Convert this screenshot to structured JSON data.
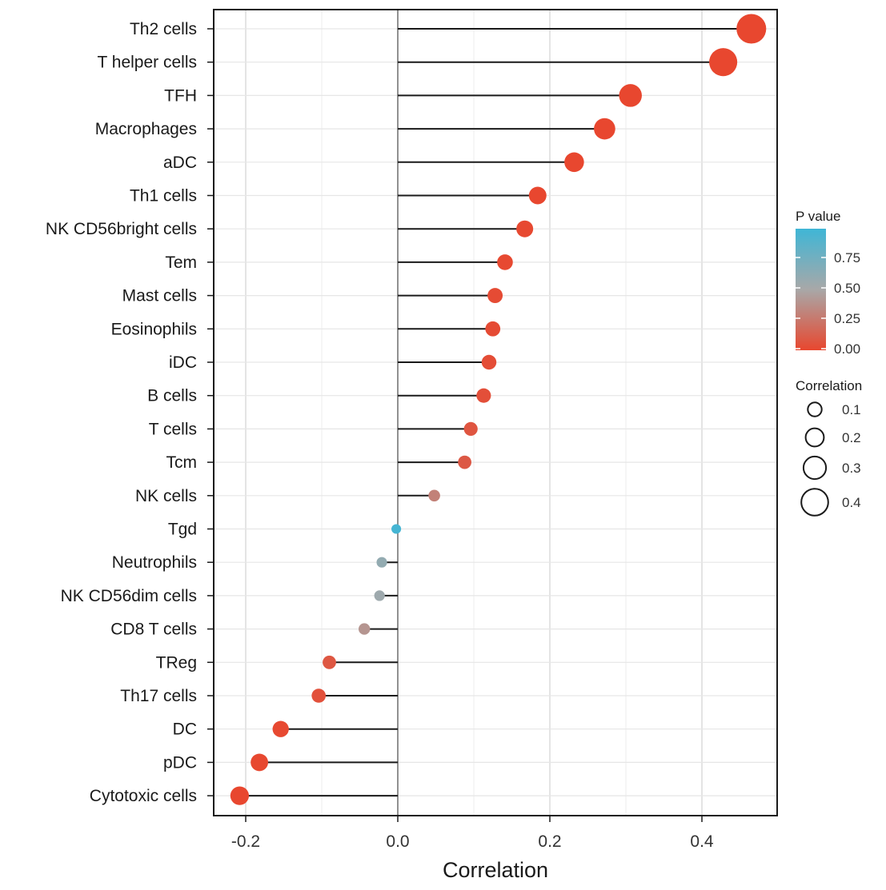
{
  "chart_data": {
    "type": "scatter",
    "subtype": "lollipop",
    "title": "",
    "xlabel": "Correlation",
    "ylabel": "",
    "xlim": [
      -0.24,
      0.5
    ],
    "xticks": [
      -0.2,
      0.0,
      0.2,
      0.4
    ],
    "xtick_labels": [
      "-0.2",
      "0.0",
      "0.2",
      "0.4"
    ],
    "grid": true,
    "legend_position": "right",
    "categories": [
      "Th2 cells",
      "T helper cells",
      "TFH",
      "Macrophages",
      "aDC",
      "Th1 cells",
      "NK CD56bright cells",
      "Tem",
      "Mast cells",
      "Eosinophils",
      "iDC",
      "B cells",
      "T cells",
      "Tcm",
      "NK cells",
      "Tgd",
      "Neutrophils",
      "NK CD56dim cells",
      "CD8 T cells",
      "TReg",
      "Th17 cells",
      "DC",
      "pDC",
      "Cytotoxic cells"
    ],
    "correlation": [
      0.465,
      0.428,
      0.306,
      0.272,
      0.232,
      0.184,
      0.167,
      0.141,
      0.128,
      0.125,
      0.12,
      0.113,
      0.096,
      0.088,
      0.048,
      -0.002,
      -0.021,
      -0.024,
      -0.044,
      -0.09,
      -0.104,
      -0.154,
      -0.182,
      -0.208
    ],
    "p_value": [
      0.0,
      0.0,
      0.0,
      0.0,
      0.0,
      0.0,
      0.01,
      0.01,
      0.02,
      0.02,
      0.03,
      0.04,
      0.07,
      0.09,
      0.3,
      0.97,
      0.6,
      0.55,
      0.4,
      0.08,
      0.05,
      0.01,
      0.005,
      0.0
    ],
    "color_scale": {
      "title": "P value",
      "ticks": [
        0.0,
        0.25,
        0.5,
        0.75
      ],
      "tick_labels": [
        "0.00",
        "0.25",
        "0.50",
        "0.75"
      ],
      "range": [
        0.0,
        1.0
      ],
      "low_color": "#e8472f",
      "mid_color": "#a8a8a8",
      "high_color": "#3fb6d6"
    },
    "size_legend": {
      "title": "Correlation",
      "values": [
        0.1,
        0.2,
        0.3,
        0.4
      ],
      "labels": [
        "0.1",
        "0.2",
        "0.3",
        "0.4"
      ]
    }
  }
}
